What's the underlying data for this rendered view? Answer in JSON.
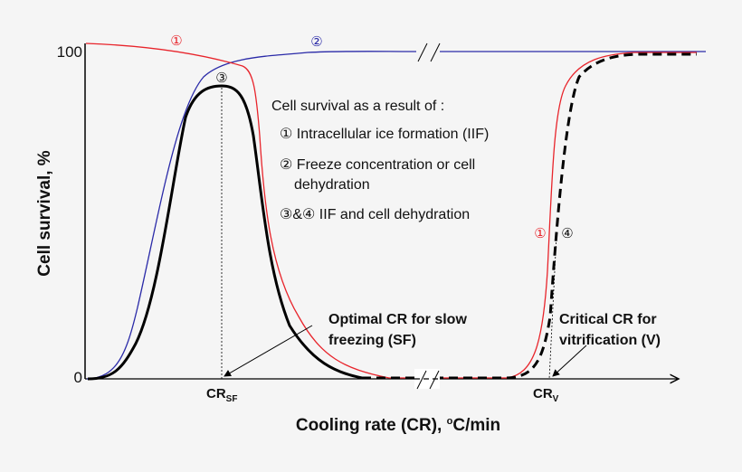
{
  "diagram": {
    "y_axis_label": "Cell survival, %",
    "y_tick_top": "100",
    "y_tick_bottom": "0",
    "x_axis_label_pre": "Cooling rate (CR), ",
    "x_axis_label_sup": "o",
    "x_axis_label_post": "C/min",
    "cr_sf": {
      "main": "CR",
      "sub": "SF"
    },
    "cr_v": {
      "main": "CR",
      "sub": "V"
    },
    "curve_markers": {
      "c1": "①",
      "c2": "②",
      "c3": "③",
      "c4": "④"
    },
    "legend": {
      "title": "Cell survival as a result of :",
      "item1": "① Intracellular ice formation (IIF)",
      "item2_line1": "② Freeze concentration or cell",
      "item2_line2": "dehydration",
      "item3": "③&④ IIF and cell dehydration"
    },
    "annotation_sf": {
      "line1": "Optimal CR for slow",
      "line2": "freezing (SF)"
    },
    "annotation_v": {
      "line1": "Critical CR for",
      "line2": "vitrification (V)"
    },
    "colors": {
      "iif": "#e8242b",
      "dehydration": "#2a2aa8",
      "combined": "#000000",
      "background": "#f5f5f5"
    }
  }
}
